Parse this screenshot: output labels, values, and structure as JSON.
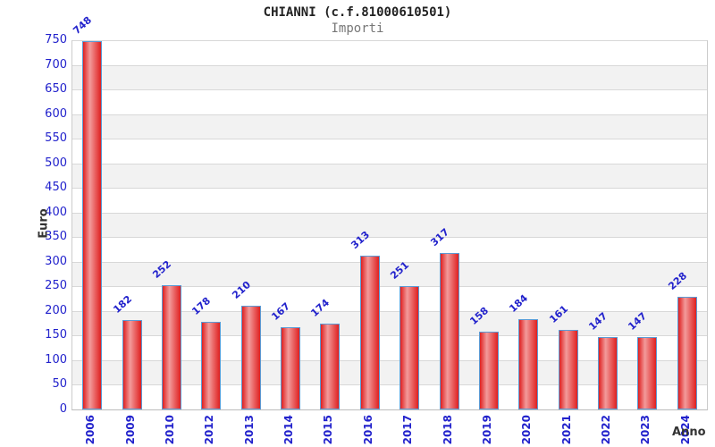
{
  "chart_data": {
    "type": "bar",
    "title": "CHIANNI (c.f.81000610501)",
    "subtitle": "Importi",
    "xlabel": "Anno",
    "ylabel": "Euro",
    "categories": [
      "2006",
      "2009",
      "2010",
      "2012",
      "2013",
      "2014",
      "2015",
      "2016",
      "2017",
      "2018",
      "2019",
      "2020",
      "2021",
      "2022",
      "2023",
      "2024"
    ],
    "values": [
      748,
      182,
      252,
      178,
      210,
      167,
      174,
      313,
      251,
      317,
      158,
      184,
      161,
      147,
      147,
      228
    ],
    "ylim": [
      0,
      750
    ],
    "ytick_step": 50,
    "grid": true,
    "legend": "none",
    "colors": {
      "bar_edge": "#df2020",
      "bar_highlight": "#f29b9b",
      "bar_border": "#5b9bd5",
      "label_blue": "#2222cc",
      "axis_title": "#333333",
      "band_gray": "#f2f2f2",
      "gridline": "#d8d8d8",
      "plot_border": "#cccccc",
      "subtitle_gray": "#777777",
      "title_color": "#222222"
    }
  }
}
